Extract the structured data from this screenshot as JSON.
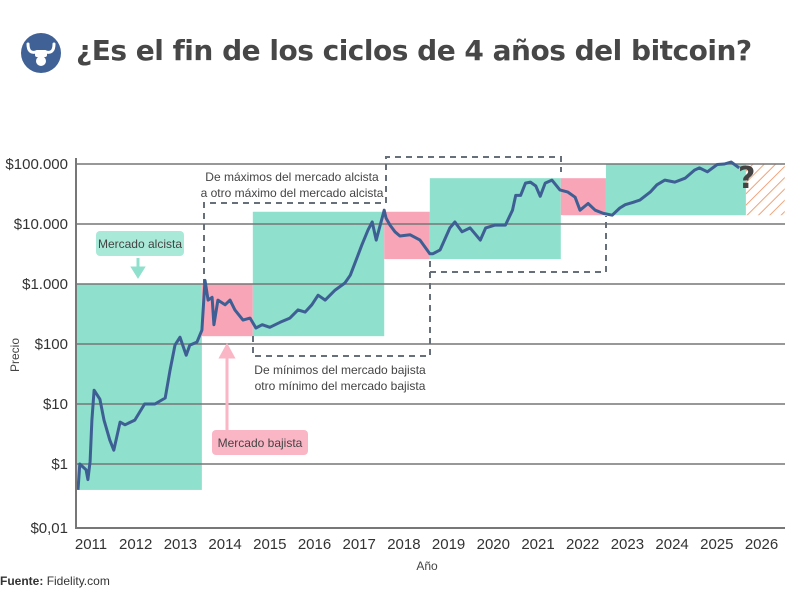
{
  "header": {
    "title": "¿Es el fin de los ciclos de 4 años del bitcoin?",
    "logo_icon": "bull-fist-icon"
  },
  "source": {
    "label": "Fuente:",
    "value": "Fidelity.com"
  },
  "chart_data": {
    "type": "line",
    "xlabel": "Año",
    "ylabel": "Precio",
    "yscale": "log",
    "ylim": [
      0.01,
      100000
    ],
    "x_ticks": [
      "2011",
      "2012",
      "2013",
      "2014",
      "2015",
      "2016",
      "2017",
      "2018",
      "2019",
      "2020",
      "2021",
      "2022",
      "2023",
      "2024",
      "2025",
      "2026"
    ],
    "y_ticks": [
      {
        "value": 100000,
        "label": "$100.000"
      },
      {
        "value": 10000,
        "label": "$10.000"
      },
      {
        "value": 1000,
        "label": "$1.000"
      },
      {
        "value": 100,
        "label": "$100"
      },
      {
        "value": 10,
        "label": "$10"
      },
      {
        "value": 1,
        "label": "$1"
      },
      {
        "value": 0.01,
        "label": "$0,01"
      }
    ],
    "grid": true,
    "colors": {
      "line": "#3d5f94",
      "bull": "#8fe0cc",
      "bear": "#f9a5b8",
      "projection": "#f0a47a",
      "grid": "#777777"
    },
    "series": [
      {
        "points": [
          [
            2010.71,
            0.37
          ],
          [
            2010.75,
            1
          ],
          [
            2010.89,
            0.8
          ],
          [
            2010.93,
            0.55
          ],
          [
            2010.98,
            1.1
          ],
          [
            2011.02,
            5.4
          ],
          [
            2011.07,
            17
          ],
          [
            2011.2,
            12
          ],
          [
            2011.29,
            5.4
          ],
          [
            2011.42,
            2.5
          ],
          [
            2011.51,
            1.7
          ],
          [
            2011.65,
            5
          ],
          [
            2011.76,
            4.5
          ],
          [
            2011.98,
            5.4
          ],
          [
            2012.2,
            10
          ],
          [
            2012.43,
            10
          ],
          [
            2012.66,
            12.6
          ],
          [
            2012.77,
            37
          ],
          [
            2012.88,
            96
          ],
          [
            2012.99,
            130
          ],
          [
            2013.13,
            65
          ],
          [
            2013.21,
            96
          ],
          [
            2013.37,
            107
          ],
          [
            2013.48,
            170
          ],
          [
            2013.55,
            1150
          ],
          [
            2013.62,
            540
          ],
          [
            2013.71,
            600
          ],
          [
            2013.75,
            210
          ],
          [
            2013.84,
            540
          ],
          [
            2014.0,
            450
          ],
          [
            2014.11,
            540
          ],
          [
            2014.22,
            370
          ],
          [
            2014.4,
            250
          ],
          [
            2014.56,
            270
          ],
          [
            2014.69,
            185
          ],
          [
            2014.83,
            210
          ],
          [
            2015.0,
            190
          ],
          [
            2015.23,
            230
          ],
          [
            2015.45,
            270
          ],
          [
            2015.63,
            370
          ],
          [
            2015.79,
            340
          ],
          [
            2015.94,
            450
          ],
          [
            2016.08,
            650
          ],
          [
            2016.24,
            540
          ],
          [
            2016.46,
            790
          ],
          [
            2016.68,
            1040
          ],
          [
            2016.8,
            1400
          ],
          [
            2016.93,
            2500
          ],
          [
            2017.06,
            4500
          ],
          [
            2017.2,
            8000
          ],
          [
            2017.29,
            10800
          ],
          [
            2017.38,
            5400
          ],
          [
            2017.47,
            9600
          ],
          [
            2017.56,
            17000
          ],
          [
            2017.6,
            12600
          ],
          [
            2017.69,
            9600
          ],
          [
            2017.8,
            7400
          ],
          [
            2017.91,
            6300
          ],
          [
            2018.14,
            6600
          ],
          [
            2018.36,
            5400
          ],
          [
            2018.58,
            3200
          ],
          [
            2018.65,
            3200
          ],
          [
            2018.81,
            3700
          ],
          [
            2019.03,
            8600
          ],
          [
            2019.14,
            10800
          ],
          [
            2019.3,
            7400
          ],
          [
            2019.48,
            8600
          ],
          [
            2019.71,
            5400
          ],
          [
            2019.83,
            8600
          ],
          [
            2020.04,
            9600
          ],
          [
            2020.27,
            9600
          ],
          [
            2020.43,
            17000
          ],
          [
            2020.5,
            30000
          ],
          [
            2020.61,
            30000
          ],
          [
            2020.72,
            48000
          ],
          [
            2020.83,
            50000
          ],
          [
            2020.95,
            43000
          ],
          [
            2021.05,
            29000
          ],
          [
            2021.16,
            48000
          ],
          [
            2021.31,
            54000
          ],
          [
            2021.49,
            37000
          ],
          [
            2021.67,
            34000
          ],
          [
            2021.83,
            28000
          ],
          [
            2021.94,
            17000
          ],
          [
            2022.12,
            22000
          ],
          [
            2022.28,
            17000
          ],
          [
            2022.46,
            15000
          ],
          [
            2022.66,
            14000
          ],
          [
            2022.83,
            18500
          ],
          [
            2022.95,
            21000
          ],
          [
            2023.13,
            23000
          ],
          [
            2023.28,
            25000
          ],
          [
            2023.51,
            34000
          ],
          [
            2023.66,
            45000
          ],
          [
            2023.84,
            54000
          ],
          [
            2024.06,
            50000
          ],
          [
            2024.29,
            58000
          ],
          [
            2024.5,
            79000
          ],
          [
            2024.61,
            86000
          ],
          [
            2024.79,
            74000
          ],
          [
            2025.01,
            98000
          ],
          [
            2025.17,
            100000
          ],
          [
            2025.32,
            108000
          ],
          [
            2025.5,
            86000
          ]
        ]
      }
    ],
    "regions": [
      {
        "kind": "bull",
        "x": [
          2010.66,
          2013.48
        ],
        "y": [
          0.37,
          1000
        ]
      },
      {
        "kind": "bear",
        "x": [
          2013.48,
          2014.62
        ],
        "y": [
          135,
          1000
        ]
      },
      {
        "kind": "bull",
        "x": [
          2014.62,
          2017.56
        ],
        "y": [
          135,
          16000
        ]
      },
      {
        "kind": "bear",
        "x": [
          2017.56,
          2018.58
        ],
        "y": [
          2600,
          16000
        ]
      },
      {
        "kind": "bull",
        "x": [
          2018.58,
          2021.51
        ],
        "y": [
          2600,
          58000
        ]
      },
      {
        "kind": "bear",
        "x": [
          2021.51,
          2022.52
        ],
        "y": [
          14000,
          58000
        ]
      },
      {
        "kind": "bull",
        "x": [
          2022.52,
          2025.65
        ],
        "y": [
          14000,
          100000
        ]
      },
      {
        "kind": "projection",
        "x": [
          2025.65,
          2026.52
        ],
        "y": [
          14000,
          100000
        ],
        "label": "?"
      }
    ],
    "annotations": {
      "bull_label": "Mercado alcista",
      "bear_label": "Mercado bajista",
      "peaks_line1": "De máximos del mercado alcista",
      "peaks_line2": "a otro máximo del mercado alcista",
      "lows_line1": "De mínimos del mercado bajista",
      "lows_line2": "otro mínimo del mercado bajista"
    }
  }
}
